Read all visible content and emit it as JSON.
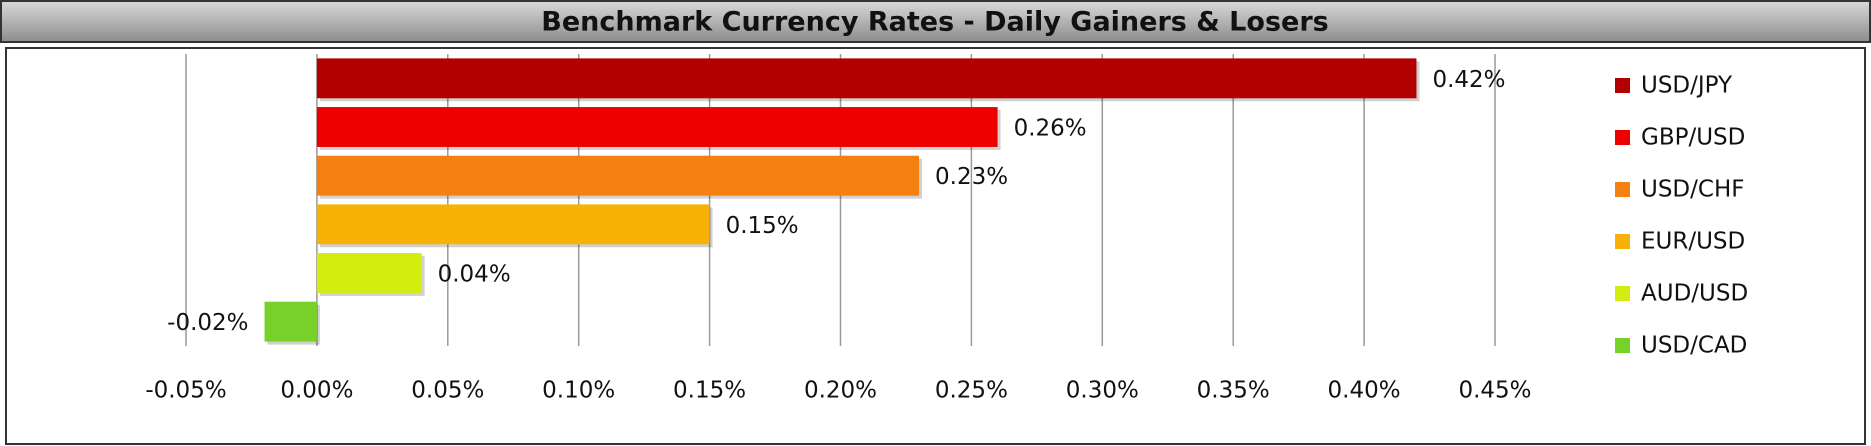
{
  "chart_data": {
    "type": "hbar",
    "title": "Benchmark Currency Rates - Daily Gainers & Losers",
    "categories": [
      "USD/JPY",
      "GBP/USD",
      "USD/CHF",
      "EUR/USD",
      "AUD/USD",
      "USD/CAD"
    ],
    "values": [
      0.42,
      0.26,
      0.23,
      0.15,
      0.04,
      -0.02
    ],
    "value_labels": [
      "0.42%",
      "0.26%",
      "0.23%",
      "0.15%",
      "0.04%",
      "-0.02%"
    ],
    "colors": [
      "#b30000",
      "#ee0000",
      "#f57f0f",
      "#f8b106",
      "#d4ec10",
      "#77d12a"
    ],
    "xlim": [
      -0.05,
      0.45
    ],
    "xticks": [
      {
        "value": -0.05,
        "label": "-0.05%"
      },
      {
        "value": 0,
        "label": "0.00%"
      },
      {
        "value": 0.05,
        "label": "0.05%"
      },
      {
        "value": 0.1,
        "label": "0.10%"
      },
      {
        "value": 0.15,
        "label": "0.15%"
      },
      {
        "value": 0.2,
        "label": "0.20%"
      },
      {
        "value": 0.25,
        "label": "0.25%"
      },
      {
        "value": 0.3,
        "label": "0.30%"
      },
      {
        "value": 0.35,
        "label": "0.35%"
      },
      {
        "value": 0.4,
        "label": "0.40%"
      },
      {
        "value": 0.45,
        "label": "0.45%"
      }
    ],
    "grid": true,
    "legend": "right"
  }
}
